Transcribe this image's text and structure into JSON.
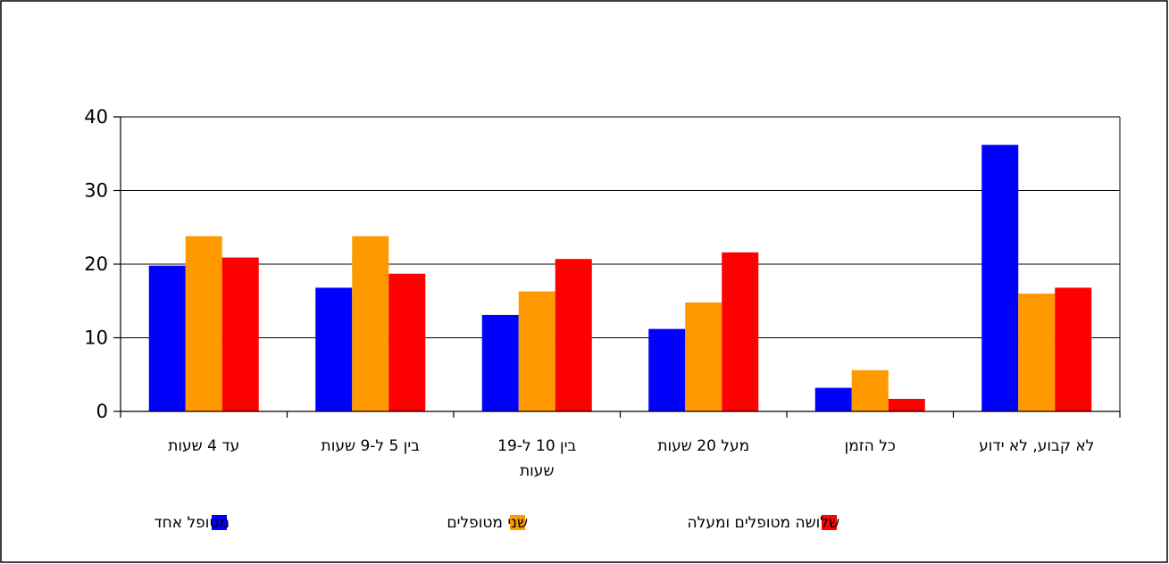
{
  "chart_data": {
    "type": "bar",
    "categories": [
      [
        "עד 4 שעות"
      ],
      [
        "בין 5 ל-9 שעות"
      ],
      [
        "בין 10 ל-19",
        "שעות"
      ],
      [
        "מעל 20 שעות"
      ],
      [
        "כל הזמן"
      ],
      [
        "לא קבוע, לא ידוע"
      ]
    ],
    "series": [
      {
        "name": "מטופל אחד",
        "color": "#0000FF",
        "values": [
          19.8,
          16.8,
          13.1,
          11.2,
          3.2,
          36.2
        ]
      },
      {
        "name": "שני מטופלים",
        "color": "#FF9900",
        "values": [
          23.8,
          23.8,
          16.3,
          14.8,
          5.6,
          16.0
        ]
      },
      {
        "name": "שלושה מטופלים ומעלה",
        "color": "#FF0000",
        "values": [
          20.9,
          18.7,
          20.7,
          21.6,
          1.7,
          16.8
        ]
      }
    ],
    "ylim": [
      0,
      40
    ],
    "yticks": [
      0,
      10,
      20,
      30,
      40
    ],
    "grid": true,
    "legend_position": "bottom",
    "title": "",
    "xlabel": "",
    "ylabel": ""
  }
}
